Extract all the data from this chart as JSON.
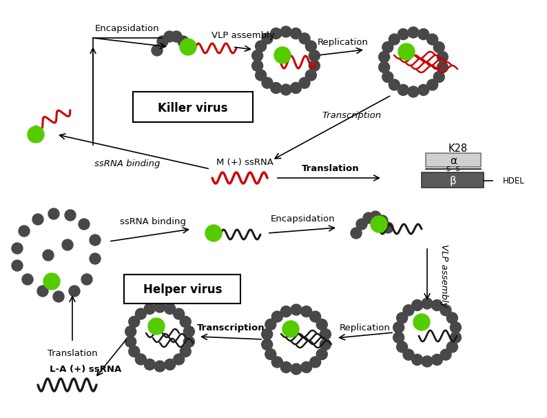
{
  "bg_color": "#ffffff",
  "dark_gray": "#484848",
  "green": "#55cc00",
  "red": "#cc0000",
  "killer_box_text": "Killer virus",
  "helper_box_text": "Helper virus",
  "labels": {
    "encapsidation_top": "Encapsidation",
    "vlp_assembly_top": "VLP assembly",
    "replication_top": "Replication",
    "transcription_diag": "Transcription",
    "m_ssrna": "M (+) ssRNA",
    "ssrna_binding_top": "ssRNA binding",
    "translation_top": "Translation",
    "k28": "K28",
    "hdel": "HDEL",
    "alpha": "α",
    "beta": "β",
    "ss_text": "s  s",
    "ssrna_binding_bot": "ssRNA binding",
    "encapsidation_bot": "Encapsidation",
    "vlp_assembly_bot": "VLP assembly",
    "replication_bot": "Replication",
    "transcription_bot": "Transcription",
    "translation_bot": "Translation",
    "la_ssrna": "L-A (+) ssRNA"
  }
}
